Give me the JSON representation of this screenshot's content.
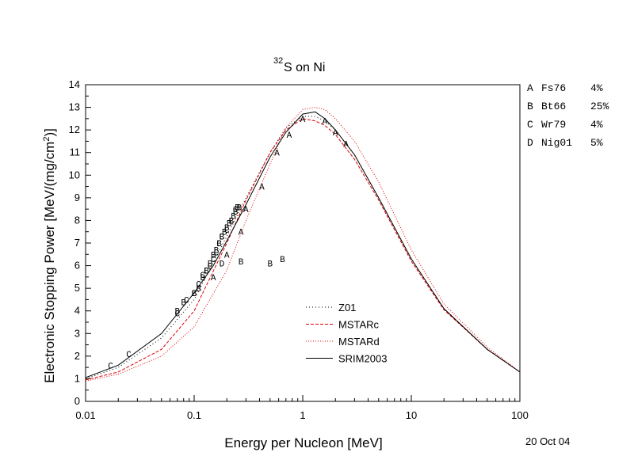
{
  "chart_data": {
    "type": "line",
    "title_super": "32",
    "title_main": "S on Ni",
    "xlabel": "Energy per Nucleon [MeV]",
    "ylabel_main": "Electronic Stopping Power [MeV/(mg/cm",
    "ylabel_super": "2",
    "ylabel_end": ")]",
    "date_label": "20 Oct 04",
    "xscale": "log",
    "xlim": [
      0.01,
      100
    ],
    "ylim": [
      0,
      14
    ],
    "x_ticks": [
      {
        "v": 0.01,
        "label": "0.01"
      },
      {
        "v": 0.1,
        "label": "0.1"
      },
      {
        "v": 1,
        "label": "1"
      },
      {
        "v": 10,
        "label": "10"
      },
      {
        "v": 100,
        "label": "100"
      }
    ],
    "y_ticks": [
      0,
      1,
      2,
      3,
      4,
      5,
      6,
      7,
      8,
      9,
      10,
      11,
      12,
      13,
      14
    ],
    "grid": false,
    "legend_position": "bottom-center",
    "series": [
      {
        "name": "Z01",
        "color": "#000000",
        "dash": "1,3",
        "x": [
          0.01,
          0.02,
          0.05,
          0.1,
          0.2,
          0.3,
          0.5,
          0.7,
          1.0,
          1.3,
          1.6,
          2,
          3,
          5,
          10,
          20,
          50,
          100
        ],
        "y": [
          1.0,
          1.5,
          2.8,
          4.5,
          7.3,
          9.0,
          11.0,
          12.1,
          12.6,
          12.6,
          12.4,
          12.0,
          10.9,
          9.0,
          6.3,
          4.1,
          2.3,
          1.3
        ]
      },
      {
        "name": "MSTARc",
        "color": "#e00000",
        "dash": "4,2",
        "x": [
          0.01,
          0.02,
          0.05,
          0.1,
          0.2,
          0.3,
          0.5,
          0.7,
          1.0,
          1.3,
          1.6,
          2,
          3,
          5,
          10,
          20,
          50,
          100
        ],
        "y": [
          0.95,
          1.3,
          2.3,
          4.0,
          7.0,
          8.9,
          11.0,
          12.0,
          12.5,
          12.4,
          12.2,
          11.8,
          10.7,
          8.9,
          6.2,
          4.05,
          2.3,
          1.3
        ]
      },
      {
        "name": "MSTARd",
        "color": "#e00000",
        "dash": "1,2",
        "x": [
          0.01,
          0.02,
          0.05,
          0.1,
          0.2,
          0.3,
          0.5,
          0.7,
          1.0,
          1.3,
          1.6,
          2,
          3,
          5,
          10,
          20,
          50,
          100
        ],
        "y": [
          0.9,
          1.2,
          2.0,
          3.3,
          5.8,
          8.0,
          10.5,
          12.1,
          12.9,
          13.0,
          12.9,
          12.5,
          11.5,
          9.7,
          6.7,
          4.3,
          2.4,
          1.3
        ]
      },
      {
        "name": "SRIM2003",
        "color": "#000000",
        "dash": "",
        "x": [
          0.01,
          0.02,
          0.05,
          0.1,
          0.15,
          0.2,
          0.3,
          0.5,
          0.7,
          1.0,
          1.3,
          1.6,
          2,
          3,
          5,
          10,
          20,
          50,
          100
        ],
        "y": [
          1.05,
          1.6,
          3.0,
          4.8,
          6.0,
          7.1,
          8.7,
          10.8,
          11.9,
          12.7,
          12.8,
          12.5,
          12.0,
          10.9,
          9.0,
          6.3,
          4.1,
          2.3,
          1.3
        ]
      }
    ],
    "legend_labels": [
      "Z01",
      "MSTARc",
      "MSTARd",
      "SRIM2003"
    ],
    "experiments": [
      {
        "letter": "A",
        "label": "Fs76",
        "pct": "4%",
        "x": [
          0.15,
          0.2,
          0.27,
          0.3,
          0.42,
          0.58,
          0.75,
          1.0,
          1.6,
          2.0,
          2.5
        ],
        "y": [
          5.5,
          6.5,
          7.5,
          8.5,
          9.5,
          11.0,
          11.8,
          12.5,
          12.4,
          11.9,
          11.4
        ]
      },
      {
        "letter": "B",
        "label": "Bt66",
        "pct": "25%",
        "x": [
          0.07,
          0.08,
          0.1,
          0.11,
          0.12,
          0.13,
          0.14,
          0.15,
          0.16,
          0.17,
          0.18,
          0.19,
          0.2,
          0.21,
          0.22,
          0.23,
          0.24,
          0.25,
          0.26,
          0.27,
          0.5,
          0.65
        ],
        "y": [
          4.0,
          4.4,
          4.8,
          5.0,
          5.5,
          5.8,
          6.1,
          6.5,
          6.7,
          7.0,
          7.3,
          7.5,
          7.7,
          7.9,
          8.0,
          8.2,
          8.4,
          8.6,
          8.6,
          6.2,
          6.1,
          6.3
        ]
      },
      {
        "letter": "C",
        "label": "Wr79",
        "pct": "4%",
        "x": [
          0.017,
          0.025,
          0.07,
          0.085,
          0.1,
          0.11,
          0.12,
          0.13,
          0.14,
          0.15,
          0.16,
          0.17,
          0.18,
          0.2,
          0.22,
          0.24
        ],
        "y": [
          1.6,
          2.1,
          3.9,
          4.5,
          4.8,
          5.2,
          5.6,
          5.8,
          6.0,
          6.3,
          6.6,
          7.0,
          7.3,
          7.6,
          8.0,
          8.5
        ]
      },
      {
        "letter": "D",
        "label": "Nig01",
        "pct": "5%",
        "x": [
          0.18
        ],
        "y": [
          6.1
        ]
      }
    ]
  }
}
